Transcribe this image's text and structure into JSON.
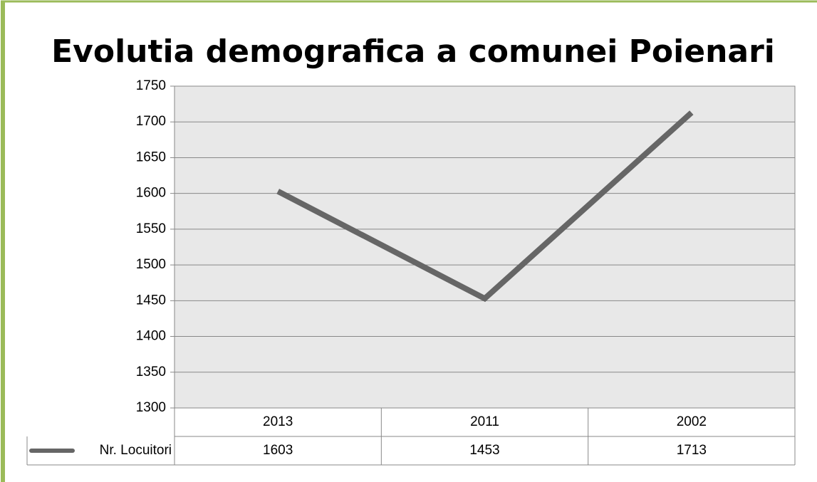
{
  "chart_data": {
    "type": "line",
    "title": "Evolutia demografica a comunei Poienari",
    "categories": [
      "2013",
      "2011",
      "2002"
    ],
    "series": [
      {
        "name": "Nr. Locuitori",
        "color": "#666666",
        "values": [
          1603,
          1453,
          1713
        ]
      }
    ],
    "ylim": [
      1300,
      1750
    ],
    "yticks": [
      1300,
      1350,
      1400,
      1450,
      1500,
      1550,
      1600,
      1650,
      1700,
      1750
    ],
    "grid": true,
    "data_table": true
  }
}
